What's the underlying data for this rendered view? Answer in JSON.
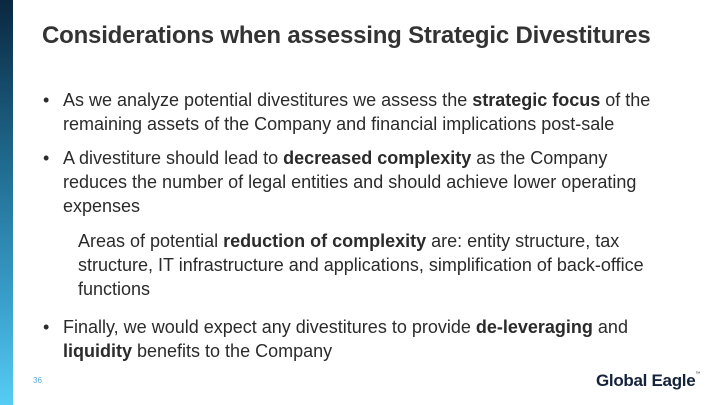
{
  "title": "Considerations when assessing Strategic Divestitures",
  "bullets": [
    {
      "pre": "As we analyze potential divestitures we assess the ",
      "bold": "strategic focus",
      "post": " of the remaining assets of the Company and financial implications post-sale"
    },
    {
      "pre": "A divestiture should lead to ",
      "bold": "decreased complexity",
      "post": " as the Company reduces the number of legal entities and should achieve lower operating expenses"
    },
    {
      "pre": "Areas of potential ",
      "bold": "reduction of complexity",
      "post": " are: entity structure, tax structure, IT infrastructure and applications, simplification of back-office functions"
    },
    {
      "pre": "Finally, we would expect any divestitures to provide ",
      "bold": "de-leveraging",
      "mid": " and ",
      "bold2": "liquidity",
      "post": " benefits to the Company"
    }
  ],
  "bullet_char": "•",
  "page_number": "36",
  "logo": {
    "text": "Global Eagle",
    "tm": "™"
  },
  "colors": {
    "bar_top": "#0a2740",
    "bar_bottom": "#55cdf5",
    "text": "#2b2b2b"
  }
}
